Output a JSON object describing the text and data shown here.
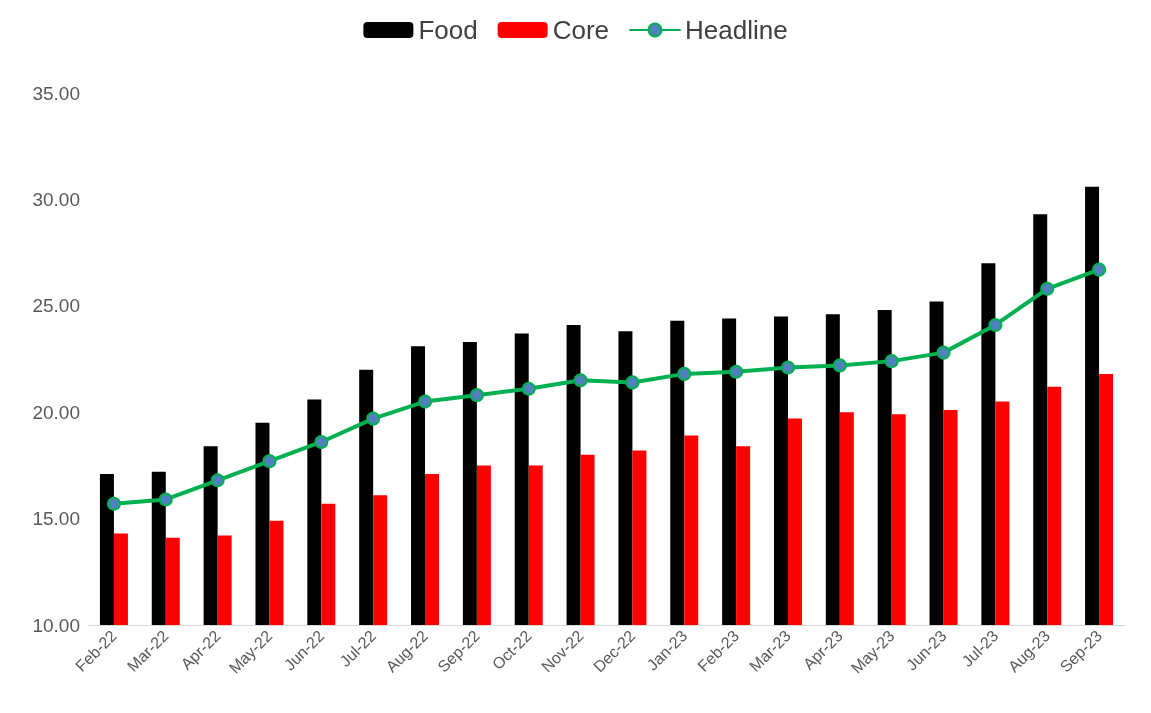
{
  "chart_data": {
    "type": "bar",
    "categories": [
      "Feb-22",
      "Mar-22",
      "Apr-22",
      "May-22",
      "Jun-22",
      "Jul-22",
      "Aug-22",
      "Sep-22",
      "Oct-22",
      "Nov-22",
      "Dec-22",
      "Jan-23",
      "Feb-23",
      "Mar-23",
      "Apr-23",
      "May-23",
      "Jun-23",
      "Jul-23",
      "Aug-23",
      "Sep-23"
    ],
    "series": [
      {
        "name": "Food",
        "color": "#000000",
        "values": [
          17.1,
          17.2,
          18.4,
          19.5,
          20.6,
          22.0,
          23.1,
          23.3,
          23.7,
          24.1,
          23.8,
          24.3,
          24.4,
          24.5,
          24.6,
          24.8,
          25.2,
          27.0,
          29.3,
          30.6
        ]
      },
      {
        "name": "Core",
        "color": "#ff0000",
        "values": [
          14.3,
          14.1,
          14.2,
          14.9,
          15.7,
          16.1,
          17.1,
          17.5,
          17.5,
          18.0,
          18.2,
          18.9,
          18.4,
          19.7,
          20.0,
          19.9,
          20.1,
          20.5,
          21.2,
          21.8
        ]
      },
      {
        "name": "Headline",
        "type": "line",
        "color": "#00b050",
        "values": [
          15.7,
          15.9,
          16.8,
          17.7,
          18.6,
          19.7,
          20.5,
          20.8,
          21.1,
          21.5,
          21.4,
          21.8,
          21.9,
          22.1,
          22.2,
          22.4,
          22.8,
          24.1,
          25.8,
          26.7
        ]
      }
    ],
    "ylim": [
      10,
      35
    ],
    "yticks": [
      {
        "value": 10,
        "label": "10.00"
      },
      {
        "value": 15,
        "label": "15.00"
      },
      {
        "value": 20,
        "label": "20.00"
      },
      {
        "value": 25,
        "label": "25.00"
      },
      {
        "value": 30,
        "label": "30.00"
      },
      {
        "value": 35,
        "label": "35.00"
      }
    ],
    "grid": false,
    "legend": "top",
    "marker": "circle",
    "line_style": "solid"
  }
}
